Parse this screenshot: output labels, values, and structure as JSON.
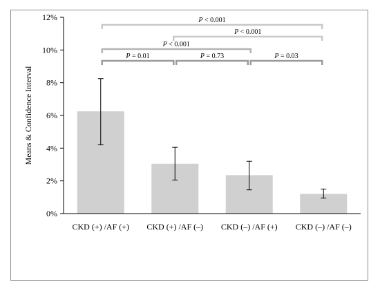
{
  "chart_data": {
    "type": "bar",
    "title": "",
    "xlabel": "",
    "ylabel": "Means & Confidence Interval",
    "ylim": [
      0,
      12
    ],
    "yticks": [
      0,
      2,
      4,
      6,
      8,
      10,
      12
    ],
    "ytick_suffix": "%",
    "categories": [
      "CKD (+) /AF (+)",
      "CKD (+) /AF (–)",
      "CKD (–) /AF (+)",
      "CKD (–) /AF (–)"
    ],
    "values": [
      6.25,
      3.05,
      2.35,
      1.2
    ],
    "ci_lower": [
      4.2,
      2.05,
      1.45,
      0.95
    ],
    "ci_upper": [
      8.25,
      4.05,
      3.2,
      1.5
    ],
    "grid": false,
    "bar_color": "#d0d0d0",
    "annotations": [
      {
        "pair": [
          0,
          3
        ],
        "label": "P < 0.001",
        "color": "#c8c8c8"
      },
      {
        "pair": [
          1,
          3
        ],
        "label": "P < 0.001",
        "color": "#c8c8c8"
      },
      {
        "pair": [
          0,
          2
        ],
        "label": "P < 0.001",
        "color": "#b4b4b4"
      },
      {
        "pair": [
          0,
          1
        ],
        "label": "P = 0.01",
        "color": "#9a9a9a"
      },
      {
        "pair": [
          1,
          2
        ],
        "label": "P = 0.73",
        "color": "#9a9a9a"
      },
      {
        "pair": [
          2,
          3
        ],
        "label": "P = 0.03",
        "color": "#9a9a9a"
      }
    ]
  }
}
